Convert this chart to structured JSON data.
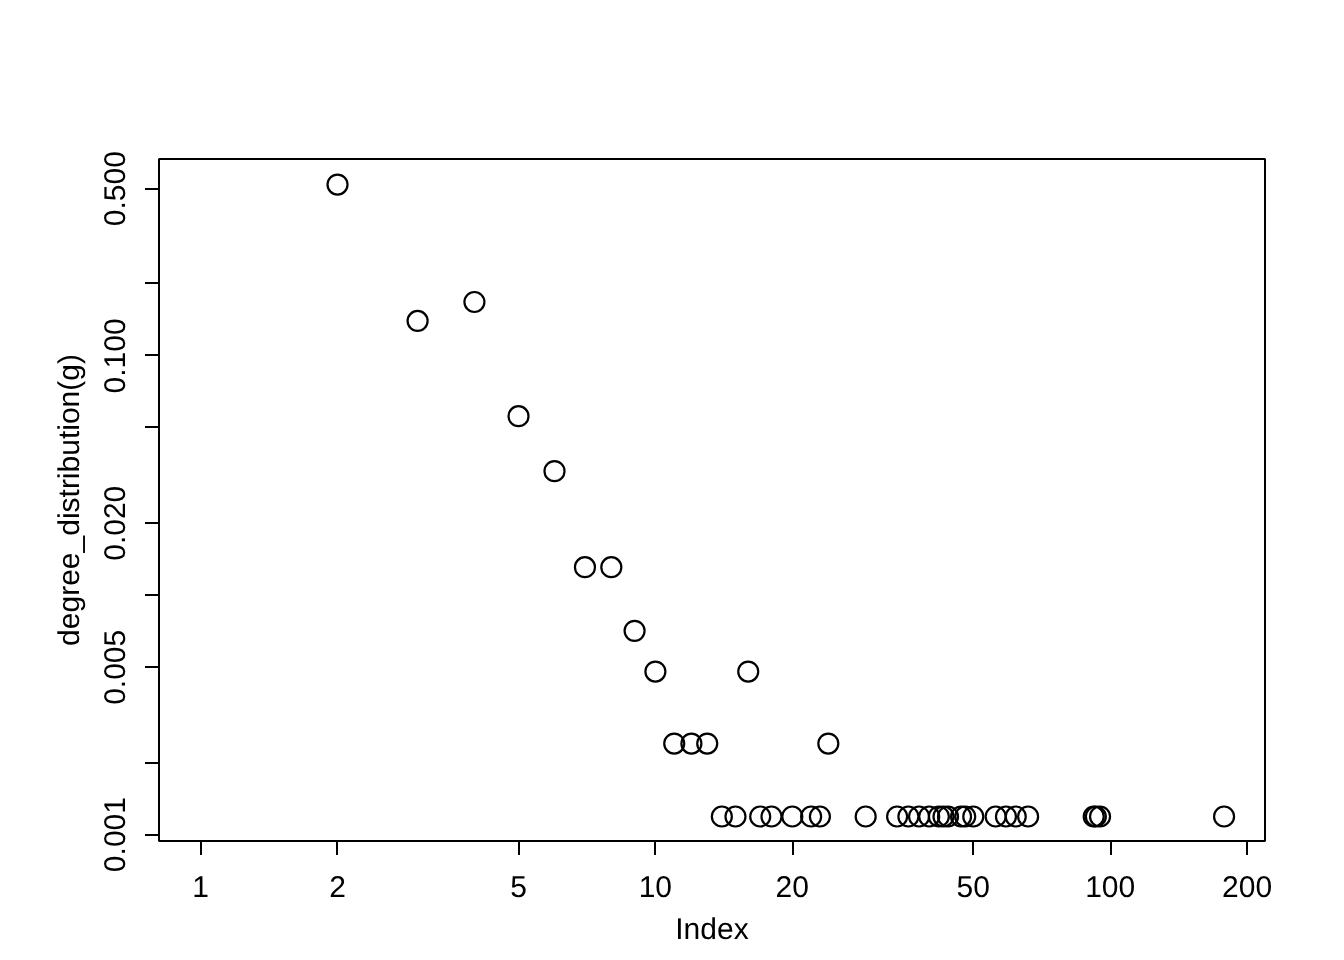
{
  "chart_data": {
    "type": "scatter",
    "xlabel": "Index",
    "ylabel": "degree_distribution(g)",
    "log": "xy",
    "marker": "circle",
    "grid": false,
    "x": [
      2,
      3,
      4,
      5,
      6,
      7,
      8,
      9,
      10,
      11,
      12,
      13,
      14,
      15,
      16,
      17,
      18,
      20,
      22,
      23,
      24,
      29,
      34,
      36,
      38,
      40,
      42,
      43,
      44,
      47,
      48,
      50,
      56,
      59,
      62,
      66,
      92,
      93,
      95,
      178
    ],
    "series": [
      {
        "color": "#000000",
        "values": [
          0.52,
          0.14,
          0.168,
          0.056,
          0.033,
          0.0131,
          0.0131,
          0.0071,
          0.0048,
          0.0024,
          0.0024,
          0.0024,
          0.00119,
          0.00119,
          0.0048,
          0.00119,
          0.00119,
          0.00119,
          0.00119,
          0.00119,
          0.0024,
          0.00119,
          0.00119,
          0.00119,
          0.00119,
          0.00119,
          0.00119,
          0.00119,
          0.00119,
          0.00119,
          0.00119,
          0.00119,
          0.00119,
          0.00119,
          0.00119,
          0.00119,
          0.00119,
          0.00119,
          0.00119,
          0.00119
        ]
      }
    ],
    "xlim": [
      0.81,
      219
    ],
    "ylim": [
      0.00094,
      0.665
    ],
    "xticks": [
      1,
      2,
      5,
      10,
      20,
      50,
      100,
      200
    ],
    "yticks": [
      {
        "value": 0.001,
        "label": "0.001"
      },
      {
        "value": 0.002,
        "label": null
      },
      {
        "value": 0.005,
        "label": "0.005"
      },
      {
        "value": 0.01,
        "label": null
      },
      {
        "value": 0.02,
        "label": "0.020"
      },
      {
        "value": 0.05,
        "label": null
      },
      {
        "value": 0.1,
        "label": "0.100"
      },
      {
        "value": 0.2,
        "label": null
      },
      {
        "value": 0.5,
        "label": "0.500"
      }
    ]
  }
}
